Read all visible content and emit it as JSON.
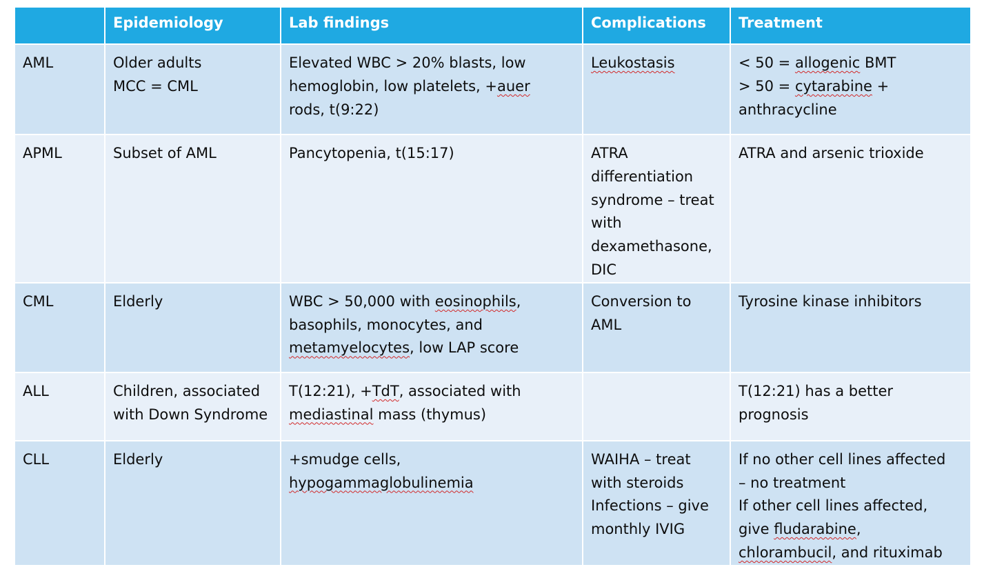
{
  "headers": [
    "",
    "Epidemiology",
    "Lab findings",
    "Complications",
    "Treatment"
  ],
  "rows": [
    {
      "name": "AML",
      "epidemiology": [
        [
          {
            "t": "Older adults"
          }
        ],
        [
          {
            "t": "MCC = CML"
          }
        ]
      ],
      "lab": [
        [
          {
            "t": "Elevated WBC > 20% blasts, low"
          }
        ],
        [
          {
            "t": "hemoglobin, low platelets, +"
          },
          {
            "t": "auer",
            "sq": true
          }
        ],
        [
          {
            "t": "rods, t(9:22)"
          }
        ]
      ],
      "complications": [
        [
          {
            "t": "Leukostasis",
            "sq": true
          }
        ]
      ],
      "treatment": [
        [
          {
            "t": "< 50 = "
          },
          {
            "t": "allogenic",
            "sq": true
          },
          {
            "t": " BMT"
          }
        ],
        [
          {
            "t": "> 50 = "
          },
          {
            "t": "cytarabine",
            "sq": true
          },
          {
            "t": " +"
          }
        ],
        [
          {
            "t": "anthracycline"
          }
        ]
      ]
    },
    {
      "name": "APML",
      "epidemiology": [
        [
          {
            "t": "Subset of AML"
          }
        ]
      ],
      "lab": [
        [
          {
            "t": "Pancytopenia, t(15:17)"
          }
        ]
      ],
      "complications": [
        [
          {
            "t": "ATRA"
          }
        ],
        [
          {
            "t": "differentiation"
          }
        ],
        [
          {
            "t": "syndrome – treat"
          }
        ],
        [
          {
            "t": "with"
          }
        ],
        [
          {
            "t": "dexamethasone,"
          }
        ],
        [
          {
            "t": "DIC"
          }
        ]
      ],
      "treatment": [
        [
          {
            "t": "ATRA and arsenic trioxide"
          }
        ]
      ]
    },
    {
      "name": "CML",
      "epidemiology": [
        [
          {
            "t": "Elderly"
          }
        ]
      ],
      "lab": [
        [
          {
            "t": "WBC > 50,000 with "
          },
          {
            "t": "eosinophils",
            "sq": true
          },
          {
            "t": ","
          }
        ],
        [
          {
            "t": "basophils, monocytes, and"
          }
        ],
        [
          {
            "t": "metamyelocytes",
            "sq": true
          },
          {
            "t": ", low LAP score"
          }
        ]
      ],
      "complications": [
        [
          {
            "t": "Conversion to"
          }
        ],
        [
          {
            "t": "AML"
          }
        ]
      ],
      "treatment": [
        [
          {
            "t": "Tyrosine kinase inhibitors"
          }
        ]
      ]
    },
    {
      "name": "ALL",
      "epidemiology": [
        [
          {
            "t": "Children, associated"
          }
        ],
        [
          {
            "t": "with Down Syndrome"
          }
        ]
      ],
      "lab": [
        [
          {
            "t": "T(12:21), +"
          },
          {
            "t": "TdT",
            "sq": true
          },
          {
            "t": ", associated with"
          }
        ],
        [
          {
            "t": "mediastinal",
            "sq": true
          },
          {
            "t": " mass (thymus)"
          }
        ]
      ],
      "complications": [],
      "treatment": [
        [
          {
            "t": "T(12:21) has a better"
          }
        ],
        [
          {
            "t": "prognosis"
          }
        ]
      ]
    },
    {
      "name": "CLL",
      "epidemiology": [
        [
          {
            "t": "Elderly"
          }
        ]
      ],
      "lab": [
        [
          {
            "t": "+smudge cells,"
          }
        ],
        [
          {
            "t": "hypogammaglobulinemia",
            "sq": true
          }
        ]
      ],
      "complications": [
        [
          {
            "t": "WAIHA – treat"
          }
        ],
        [
          {
            "t": "with steroids"
          }
        ],
        [
          {
            "t": "Infections – give"
          }
        ],
        [
          {
            "t": "monthly IVIG"
          }
        ]
      ],
      "treatment": [
        [
          {
            "t": "If no other cell lines affected"
          }
        ],
        [
          {
            "t": "– no treatment"
          }
        ],
        [
          {
            "t": "If other cell lines affected,"
          }
        ],
        [
          {
            "t": "give "
          },
          {
            "t": "fludarabine",
            "sq": true
          },
          {
            "t": ","
          }
        ],
        [
          {
            "t": "chlorambucil",
            "sq": true
          },
          {
            "t": ", and rituximab"
          }
        ]
      ]
    }
  ]
}
